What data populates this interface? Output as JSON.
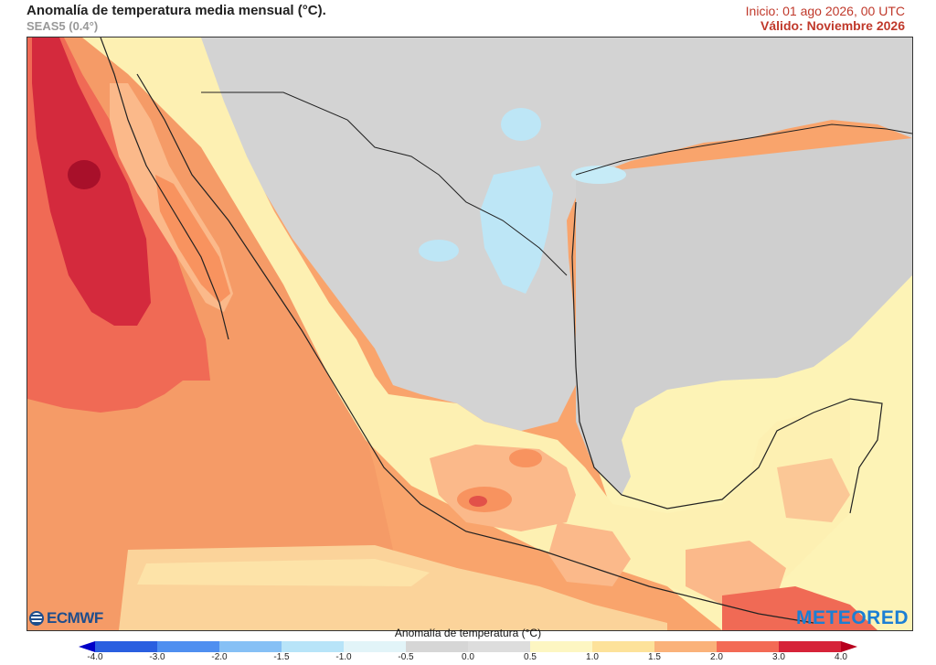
{
  "header": {
    "title": "Anomalía de temperatura media mensual (°C).",
    "subtitle": "SEAS5 (0.4°)",
    "init": "Inicio: 01 ago 2026, 00 UTC",
    "valid": "Válido: Noviembre 2026"
  },
  "logos": {
    "left": "ECMWF",
    "right": "METEORED"
  },
  "colorbar": {
    "title": "Anomalía de temperatura (°C)",
    "ticks": [
      "-4.0",
      "-3.0",
      "-2.0",
      "-1.5",
      "-1.0",
      "-0.5",
      "0.0",
      "0.5",
      "1.0",
      "1.5",
      "2.0",
      "3.0",
      "4.0"
    ],
    "colors": [
      "#0000c8",
      "#2a5fe0",
      "#4f8ff0",
      "#86c0f5",
      "#b8e4f8",
      "#e2f4f8",
      "#d6d6d6",
      "#dddddd",
      "#fdf6c2",
      "#fde29a",
      "#fab27a",
      "#f36a55",
      "#d62339"
    ]
  }
}
